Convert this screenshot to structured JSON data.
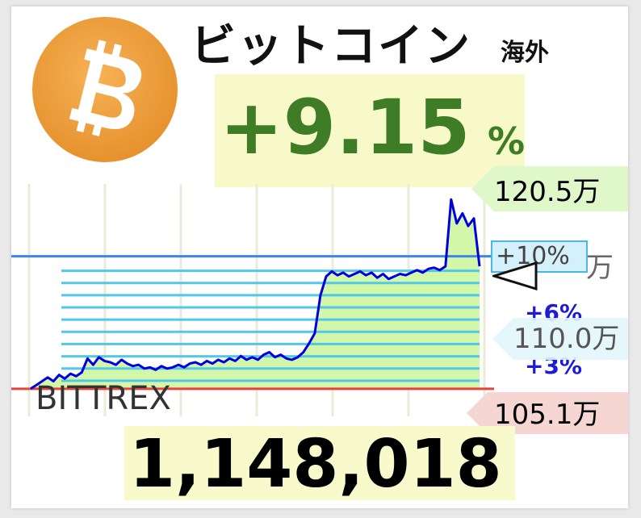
{
  "title": "ビットコイン",
  "subtitle": "海外",
  "change": {
    "value": "+9.15",
    "unit": "%"
  },
  "exchange": "BITTREX",
  "price": "1,148,018",
  "price_labels": {
    "high": "120.5万",
    "hidden": "万",
    "mid": "110.0万",
    "low": "105.1万"
  },
  "percent_labels": {
    "plus10": "+10%",
    "plus6": "+6%",
    "plus3": "+3%"
  },
  "colors": {
    "logo": "#f0a13f",
    "change": "#3f7c26",
    "line": "#0000dd",
    "fill": "#d2f7a8",
    "base_line": "#e8413a",
    "ref_line": "#3d86e6",
    "band": "#52c7ea"
  },
  "icons": {
    "logo": "bitcoin-icon",
    "pointer": "triangle-pointer-icon"
  },
  "chart_data": {
    "type": "area",
    "title": "ビットコイン",
    "xlabel": "",
    "ylabel": "",
    "ylim": [
      1033000,
      1212000
    ],
    "grid": true,
    "baseline": 1051000,
    "reference_lines": {
      "plus10": 1156000
    },
    "x": [
      0,
      1,
      2,
      3,
      4,
      5,
      6,
      7,
      8,
      9,
      10,
      11,
      12,
      13,
      14,
      15,
      16,
      17,
      18,
      19,
      20,
      21,
      22,
      23,
      24,
      25,
      26,
      27,
      28,
      29,
      30,
      31,
      32,
      33,
      34,
      35,
      36,
      37,
      38,
      39,
      40,
      41,
      42,
      43,
      44,
      45,
      46,
      47,
      48,
      49,
      50,
      51,
      52,
      53,
      54,
      55,
      56,
      57,
      58,
      59,
      60,
      61,
      62,
      63,
      64,
      65,
      66,
      67,
      68,
      69,
      70,
      71,
      72,
      73,
      74,
      75,
      76,
      77,
      78,
      79
    ],
    "series": [
      {
        "values": [
          1051000,
          1054000,
          1057000,
          1060000,
          1057000,
          1062000,
          1059000,
          1063000,
          1061000,
          1064000,
          1075000,
          1070000,
          1076000,
          1073000,
          1072000,
          1070000,
          1074000,
          1071000,
          1069000,
          1070000,
          1067000,
          1068000,
          1066000,
          1069000,
          1067000,
          1068000,
          1070000,
          1068000,
          1071000,
          1072000,
          1070000,
          1073000,
          1071000,
          1074000,
          1072000,
          1075000,
          1073000,
          1077000,
          1074000,
          1076000,
          1074000,
          1078000,
          1080000,
          1076000,
          1078000,
          1075000,
          1074000,
          1076000,
          1080000,
          1087000,
          1095000,
          1125000,
          1140000,
          1144000,
          1141000,
          1143000,
          1140000,
          1142000,
          1144000,
          1141000,
          1143000,
          1139000,
          1142000,
          1138000,
          1140000,
          1142000,
          1141000,
          1143000,
          1145000,
          1143000,
          1146000,
          1147000,
          1145000,
          1148000,
          1201000,
          1182000,
          1190000,
          1180000,
          1186000,
          1148018
        ]
      }
    ]
  }
}
